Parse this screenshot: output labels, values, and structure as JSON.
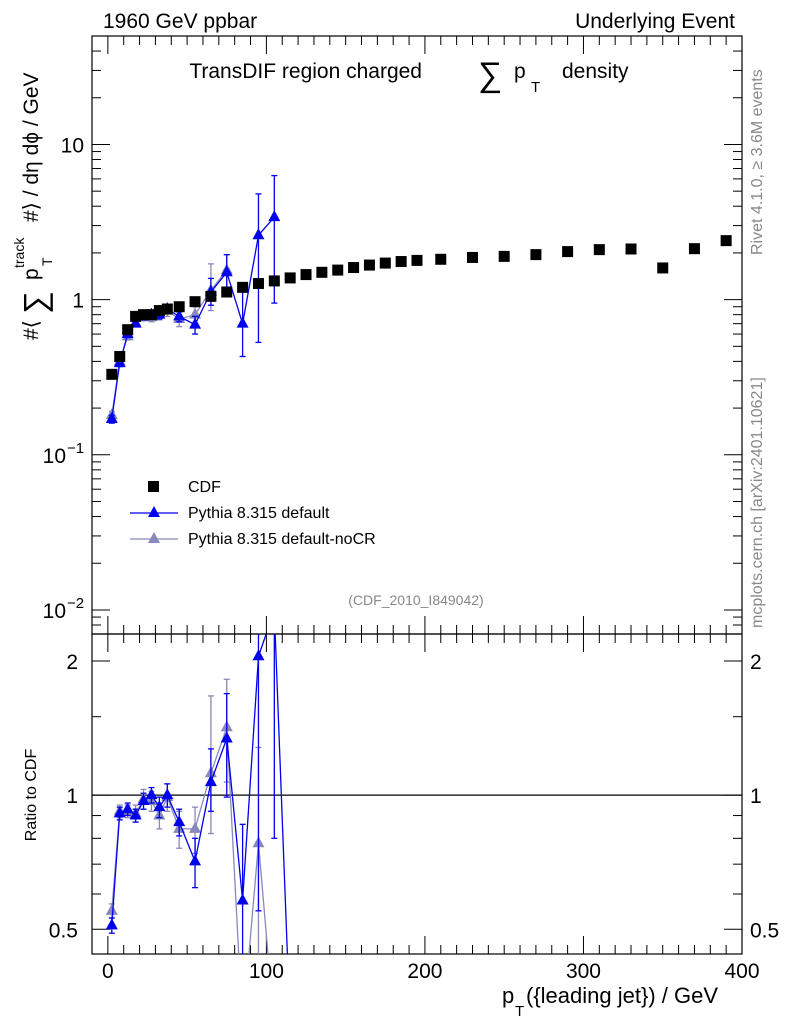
{
  "header": {
    "left": "1960 GeV ppbar",
    "right": "Underlying Event"
  },
  "side_text": {
    "top": "Rivet 4.1.0, ≥ 3.6M events",
    "bottom": "mcplots.cern.ch [arXiv:2401.10621]"
  },
  "analysis_id": "(CDF_2010_I849042)",
  "colors": {
    "data": "#000000",
    "default": "#0000ee",
    "noCR": "#8888bb"
  },
  "chart_data": [
    {
      "type": "scatter",
      "panel": "main",
      "title": "TransDIF region charged ∑ p_T density",
      "title_parts": {
        "pre": "TransDIF region charged",
        "sym": "∑",
        "p": "p",
        "sub": "T",
        "post": "density"
      },
      "ylabel": "#⟨ ∑ p_T^track #⟩ / dη dϕ / GeV",
      "ylabel_parts": {
        "pre": "#⟨",
        "sym": "∑",
        "p": "p",
        "sub": "T",
        "sup": "track",
        "post": "#⟩ / dη dϕ / GeV"
      },
      "yscale": "log",
      "ylim": [
        0.007,
        50
      ],
      "xlim": [
        -10,
        400
      ],
      "yticks": [
        {
          "value": 10,
          "label": "10"
        },
        {
          "value": 1,
          "label": "1"
        },
        {
          "value": 0.1,
          "label": "10",
          "exp": "−1"
        },
        {
          "value": 0.01,
          "label": "10",
          "exp": "−2"
        }
      ],
      "legend_position": "middle-left",
      "legend": [
        "CDF",
        "Pythia 8.315 default",
        "Pythia 8.315 default-noCR"
      ],
      "series": [
        {
          "name": "CDF",
          "marker": "square",
          "x": [
            2.5,
            7.5,
            12.5,
            17.5,
            22.5,
            27.5,
            32.5,
            37.5,
            45,
            55,
            65,
            75,
            85,
            95,
            105,
            115,
            125,
            135,
            145,
            155,
            165,
            175,
            185,
            195,
            210,
            230,
            250,
            270,
            290,
            310,
            330,
            350,
            370,
            390
          ],
          "y": [
            0.33,
            0.43,
            0.64,
            0.78,
            0.8,
            0.8,
            0.85,
            0.87,
            0.9,
            0.97,
            1.05,
            1.12,
            1.2,
            1.27,
            1.32,
            1.38,
            1.45,
            1.5,
            1.55,
            1.61,
            1.67,
            1.72,
            1.76,
            1.79,
            1.82,
            1.87,
            1.9,
            1.95,
            2.04,
            2.1,
            2.12,
            1.6,
            2.13,
            2.4
          ]
        },
        {
          "name": "Pythia 8.315 default",
          "marker": "triangle",
          "x": [
            2.5,
            7.5,
            12.5,
            17.5,
            22.5,
            27.5,
            32.5,
            37.5,
            45,
            55,
            65,
            75,
            85,
            95,
            105
          ],
          "y": [
            0.17,
            0.39,
            0.6,
            0.7,
            0.78,
            0.8,
            0.8,
            0.87,
            0.78,
            0.69,
            1.12,
            1.5,
            0.7,
            2.6,
            3.4
          ],
          "err_lo": [
            0.01,
            0.02,
            0.03,
            0.03,
            0.04,
            0.04,
            0.05,
            0.06,
            0.06,
            0.09,
            0.2,
            0.4,
            0.27,
            2.07,
            2.45
          ],
          "err_hi": [
            0.01,
            0.02,
            0.03,
            0.03,
            0.04,
            0.04,
            0.05,
            0.06,
            0.06,
            0.09,
            0.25,
            0.45,
            0.45,
            2.2,
            2.9
          ]
        },
        {
          "name": "Pythia 8.315 default-noCR",
          "marker": "triangle",
          "x": [
            2.5,
            7.5,
            12.5,
            17.5,
            22.5,
            27.5,
            32.5,
            37.5,
            45,
            55,
            65,
            75
          ],
          "y": [
            0.18,
            0.4,
            0.58,
            0.71,
            0.78,
            0.77,
            0.8,
            0.85,
            0.75,
            0.8,
            1.15,
            1.55
          ],
          "err_lo": [
            0.01,
            0.02,
            0.03,
            0.04,
            0.05,
            0.05,
            0.06,
            0.07,
            0.08,
            0.1,
            0.3,
            0.35
          ],
          "err_hi": [
            0.01,
            0.02,
            0.03,
            0.04,
            0.05,
            0.05,
            0.06,
            0.07,
            0.08,
            0.1,
            0.55,
            0.4
          ]
        }
      ]
    },
    {
      "type": "line",
      "panel": "ratio",
      "ylabel": "Ratio to CDF",
      "xlabel": "p_T({leading jet}) / GeV",
      "xlabel_parts": {
        "p": "p",
        "sub": "T",
        "post": "({leading jet}) / GeV"
      },
      "yscale": "log",
      "ylim": [
        0.44,
        2.3
      ],
      "xlim": [
        -10,
        400
      ],
      "reference_line": 1,
      "yticks": [
        {
          "value": 2,
          "label": "2"
        },
        {
          "value": 1,
          "label": "1"
        },
        {
          "value": 0.5,
          "label": "0.5"
        }
      ],
      "xticks": [
        {
          "value": 0,
          "label": "0"
        },
        {
          "value": 100,
          "label": "100"
        },
        {
          "value": 200,
          "label": "200"
        },
        {
          "value": 300,
          "label": "300"
        },
        {
          "value": 400,
          "label": "400"
        }
      ],
      "series": [
        {
          "name": "Pythia 8.315 default",
          "x": [
            2.5,
            7.5,
            12.5,
            17.5,
            22.5,
            27.5,
            32.5,
            37.5,
            45,
            55,
            65,
            75,
            85,
            95,
            105,
            115
          ],
          "y": [
            0.51,
            0.91,
            0.93,
            0.9,
            0.97,
            1.0,
            0.94,
            1.0,
            0.87,
            0.71,
            1.07,
            1.34,
            0.58,
            2.05,
            2.6,
            0.3
          ],
          "err_lo": [
            0.02,
            0.03,
            0.03,
            0.03,
            0.04,
            0.04,
            0.05,
            0.06,
            0.06,
            0.09,
            0.15,
            0.35,
            0.3,
            1.5,
            1.8,
            0
          ],
          "err_hi": [
            0.02,
            0.03,
            0.03,
            0.03,
            0.04,
            0.04,
            0.05,
            0.06,
            0.06,
            0.09,
            0.2,
            0.35,
            0.28,
            1.7,
            2.0,
            0
          ]
        },
        {
          "name": "Pythia 8.315 default-noCR",
          "x": [
            2.5,
            7.5,
            12.5,
            17.5,
            22.5,
            27.5,
            32.5,
            37.5,
            45,
            55,
            65,
            75,
            85,
            95,
            105
          ],
          "y": [
            0.55,
            0.92,
            0.92,
            0.91,
            0.98,
            0.97,
            0.9,
            0.99,
            0.84,
            0.84,
            1.12,
            1.42,
            0.3,
            0.78,
            0.3
          ],
          "err_lo": [
            0.02,
            0.03,
            0.03,
            0.04,
            0.05,
            0.05,
            0.06,
            0.07,
            0.08,
            0.1,
            0.3,
            0.35,
            0,
            0.4,
            0
          ],
          "err_hi": [
            0.02,
            0.03,
            0.03,
            0.04,
            0.05,
            0.05,
            0.06,
            0.07,
            0.08,
            0.1,
            0.55,
            0.4,
            0,
            0.5,
            0
          ]
        }
      ]
    }
  ]
}
